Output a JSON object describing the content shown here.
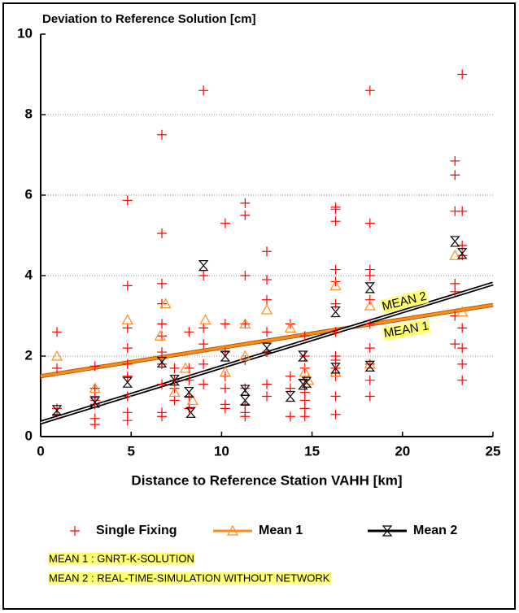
{
  "chart_data": {
    "type": "scatter",
    "title": "Deviation to Reference Solution [cm]",
    "x_label": "Distance to Reference Station VAHH [km]",
    "xlim": [
      0,
      25
    ],
    "xticks": [
      0,
      5,
      10,
      15,
      20,
      25
    ],
    "ylim": [
      0,
      10
    ],
    "yticks": [
      0,
      2,
      4,
      6,
      8,
      10
    ],
    "grid": true,
    "series": [
      {
        "name": "Single Fixing",
        "color": "#ff0000",
        "marker": "plus",
        "x": [
          0.9,
          0.9,
          0.9,
          0.9,
          3,
          3,
          3,
          3,
          3,
          3,
          3,
          4.8,
          4.8,
          4.8,
          4.8,
          4.8,
          4.8,
          4.8,
          4.8,
          4.8,
          6.7,
          6.7,
          6.7,
          6.7,
          6.7,
          6.7,
          6.7,
          6.7,
          6.7,
          6.7,
          6.7,
          7.4,
          7.4,
          7.4,
          7.4,
          8.2,
          8.2,
          8.2,
          8.2,
          8.2,
          9,
          9,
          9,
          9,
          9,
          9,
          10.2,
          10.2,
          10.2,
          10.2,
          10.2,
          10.2,
          10.2,
          11.3,
          11.3,
          11.3,
          11.3,
          11.3,
          11.3,
          11.3,
          11.3,
          11.3,
          12.5,
          12.5,
          12.5,
          12.5,
          12.5,
          12.5,
          12.5,
          13.8,
          13.8,
          13.8,
          13.8,
          14.6,
          14.6,
          14.6,
          14.6,
          14.6,
          14.6,
          14.6,
          14.6,
          16.3,
          16.3,
          16.3,
          16.3,
          16.3,
          16.3,
          16.3,
          16.3,
          16.3,
          16.3,
          16.3,
          16.3,
          16.3,
          18.2,
          18.2,
          18.2,
          18.2,
          18.2,
          18.2,
          18.2,
          18.2,
          18.2,
          18.2,
          22.9,
          22.9,
          22.9,
          22.9,
          22.9,
          22.9,
          22.9,
          23.3,
          23.3,
          23.3,
          23.3,
          23.3,
          23.3,
          23.3,
          23.3
        ],
        "values": [
          2.6,
          1.7,
          0.7,
          0.55,
          1.75,
          1.2,
          1.0,
          0.8,
          0.45,
          0.3,
          0.9,
          5.87,
          3.75,
          2.7,
          2.2,
          1.8,
          1.5,
          1.0,
          0.6,
          0.4,
          7.5,
          5.05,
          3.8,
          3.3,
          2.8,
          2.5,
          2.1,
          1.8,
          1.3,
          0.6,
          0.5,
          1.7,
          1.4,
          1.2,
          0.9,
          2.6,
          1.7,
          1.4,
          1.0,
          0.7,
          8.6,
          4.0,
          2.7,
          2.3,
          1.8,
          1.3,
          5.3,
          2.8,
          2.1,
          1.5,
          1.2,
          0.8,
          0.7,
          5.8,
          5.5,
          4.0,
          2.8,
          1.9,
          1.2,
          0.8,
          0.6,
          0.5,
          4.6,
          3.9,
          3.4,
          2.6,
          2.1,
          1.3,
          1.0,
          2.8,
          1.5,
          1.2,
          0.5,
          2.5,
          2.0,
          1.7,
          1.4,
          1.1,
          0.9,
          0.7,
          0.5,
          5.7,
          5.65,
          5.35,
          4.15,
          3.85,
          3.3,
          2.6,
          2.0,
          1.9,
          1.7,
          1.5,
          1.0,
          0.55,
          8.6,
          5.3,
          4.15,
          4.0,
          3.4,
          2.8,
          2.2,
          1.8,
          1.4,
          1.0,
          6.85,
          6.5,
          5.6,
          3.8,
          3.6,
          3.0,
          2.3,
          9.0,
          5.6,
          4.75,
          4.5,
          2.7,
          2.2,
          1.8,
          1.4
        ]
      },
      {
        "name": "Mean 1",
        "color": "#ff8c1a",
        "marker": "triangle",
        "x": [
          0.9,
          3,
          4.8,
          6.6,
          6.9,
          7.4,
          8,
          8.4,
          9.1,
          10.2,
          11.3,
          11.3,
          12.5,
          13.8,
          14.6,
          14.8,
          16.3,
          16.3,
          18.2,
          18.2,
          22.9,
          23.3
        ],
        "values": [
          2.0,
          1.2,
          2.9,
          2.5,
          3.3,
          1.1,
          1.7,
          0.9,
          2.9,
          1.6,
          2.8,
          2.0,
          3.15,
          2.7,
          1.6,
          1.4,
          3.75,
          1.6,
          3.25,
          1.8,
          4.5,
          3.1
        ],
        "fit": {
          "x": [
            0,
            25
          ],
          "values": [
            1.5,
            3.27
          ]
        }
      },
      {
        "name": "Mean 2",
        "color": "#000000",
        "marker": "hourglass",
        "x": [
          0.9,
          3,
          4.8,
          6.7,
          7.4,
          8.2,
          8.3,
          9,
          10.2,
          11.3,
          11.3,
          12.5,
          13.8,
          14.5,
          14.5,
          14.7,
          16.3,
          16.3,
          18.2,
          18.2,
          22.9,
          23.3
        ],
        "values": [
          0.65,
          0.85,
          1.35,
          1.85,
          1.4,
          1.1,
          0.6,
          4.25,
          2.0,
          1.15,
          0.9,
          2.2,
          1.0,
          2.0,
          1.3,
          1.35,
          3.1,
          1.7,
          3.7,
          1.75,
          4.85,
          4.55
        ],
        "fit": {
          "x": [
            0,
            25
          ],
          "values": [
            0.35,
            3.8
          ]
        }
      }
    ],
    "annotations": [
      "MEAN 2",
      "MEAN 1"
    ],
    "notes": [
      "MEAN 1  : GNRT-K-SOLUTION",
      "MEAN 2 :  REAL-TIME-SIMULATION WITHOUT NETWORK"
    ]
  }
}
